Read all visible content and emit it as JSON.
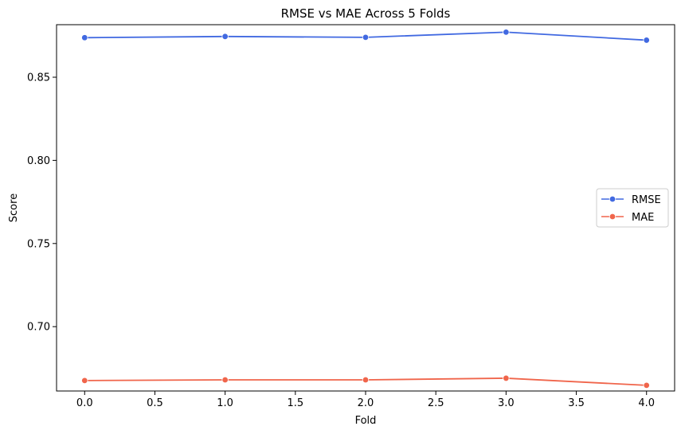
{
  "chart_data": {
    "type": "line",
    "title": "RMSE vs MAE Across 5 Folds",
    "xlabel": "Fold",
    "ylabel": "Score",
    "xlim": [
      -0.2,
      4.2
    ],
    "ylim": [
      0.6613,
      0.8816
    ],
    "xticks": [
      0.0,
      0.5,
      1.0,
      1.5,
      2.0,
      2.5,
      3.0,
      3.5,
      4.0
    ],
    "xtick_labels": [
      "0.0",
      "0.5",
      "1.0",
      "1.5",
      "2.0",
      "2.5",
      "3.0",
      "3.5",
      "4.0"
    ],
    "yticks": [
      0.7,
      0.75,
      0.8,
      0.85
    ],
    "ytick_labels": [
      "0.70",
      "0.75",
      "0.80",
      "0.85"
    ],
    "grid": false,
    "legend_position": "center-right",
    "x": [
      0,
      1,
      2,
      3,
      4
    ],
    "series": [
      {
        "name": "RMSE",
        "color": "#4169e1",
        "values": [
          0.8738,
          0.8745,
          0.874,
          0.8771,
          0.8723
        ]
      },
      {
        "name": "MAE",
        "color": "#f0654b",
        "values": [
          0.6676,
          0.668,
          0.668,
          0.669,
          0.6647
        ]
      }
    ]
  }
}
